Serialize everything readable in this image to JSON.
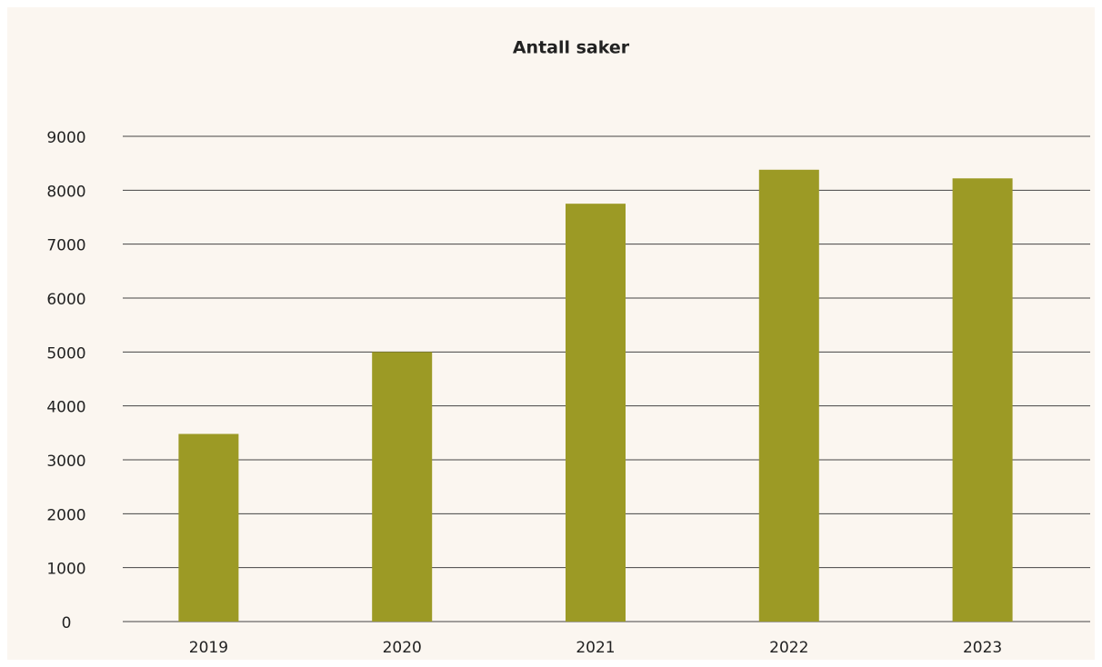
{
  "chart_data": {
    "type": "bar",
    "title": "Antall saker",
    "categories": [
      "2019",
      "2020",
      "2021",
      "2022",
      "2023"
    ],
    "values": [
      3480,
      5000,
      7750,
      8380,
      8220
    ],
    "color": "#9c9a25",
    "ylim": [
      0,
      9000
    ],
    "yticks": [
      0,
      1000,
      2000,
      3000,
      4000,
      5000,
      6000,
      7000,
      8000,
      9000
    ],
    "grid": true
  }
}
